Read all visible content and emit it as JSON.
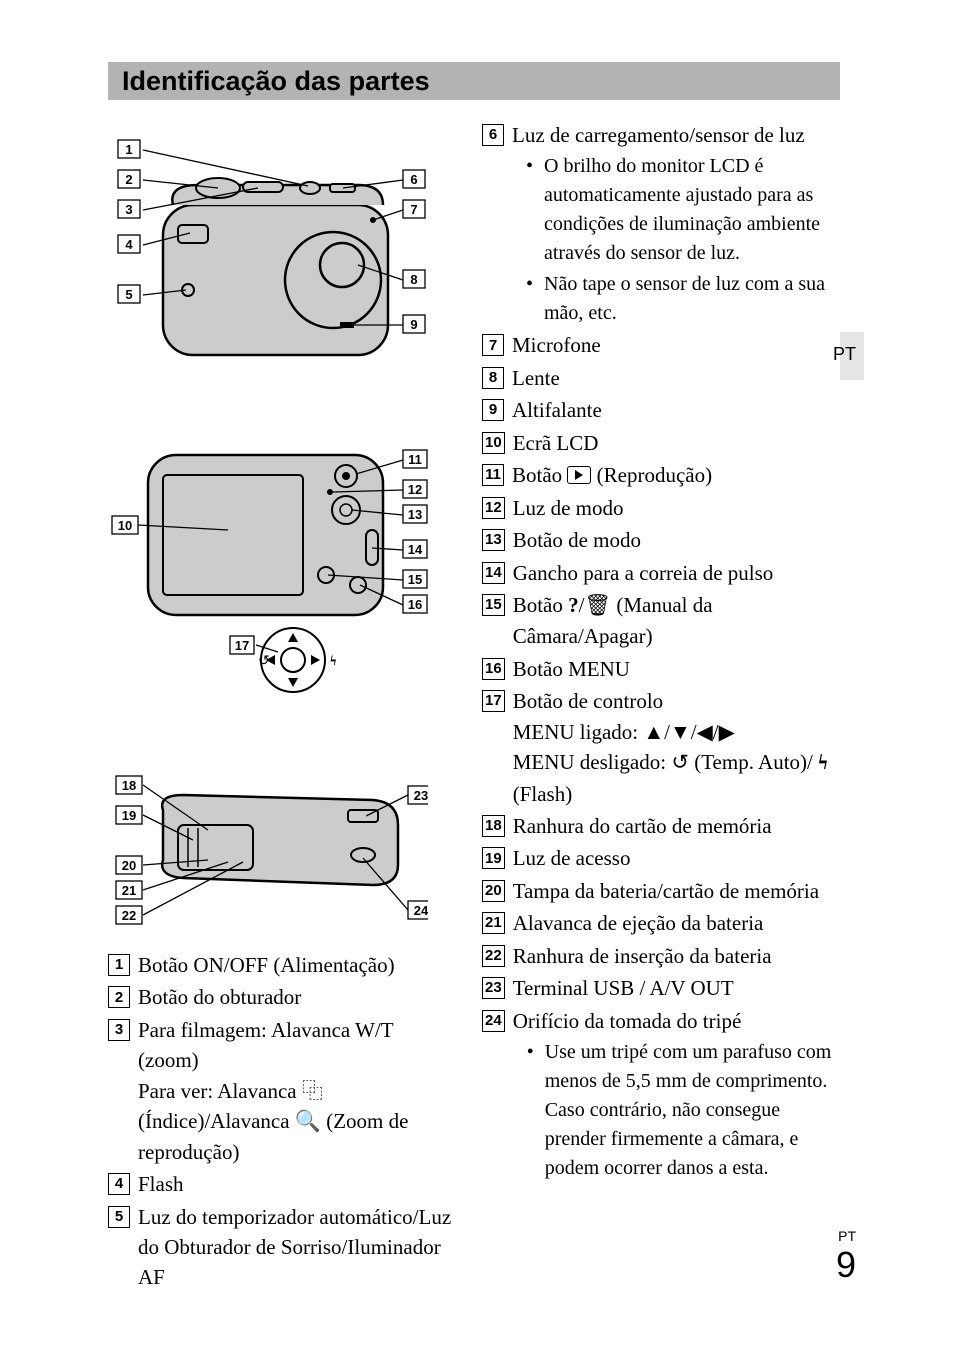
{
  "heading": "Identificação das partes",
  "side_tab": "PT",
  "footer_lang": "PT",
  "footer_page": "9",
  "diagrams": {
    "top": {
      "labels_left": [
        "1",
        "2",
        "3",
        "4",
        "5"
      ],
      "labels_right": [
        "6",
        "7",
        "8",
        "9"
      ]
    },
    "middle": {
      "labels_left": [
        "10"
      ],
      "labels_right": [
        "11",
        "12",
        "13",
        "14",
        "15",
        "16"
      ],
      "labels_bottom": [
        "17"
      ]
    },
    "bottom": {
      "labels_left": [
        "18",
        "19",
        "20",
        "21",
        "22"
      ],
      "labels_right": [
        "23",
        "24"
      ]
    }
  },
  "legend_left": [
    {
      "n": "1",
      "text": "Botão ON/OFF (Alimentação)"
    },
    {
      "n": "2",
      "text": "Botão do obturador"
    },
    {
      "n": "3",
      "text": "Para filmagem: Alavanca W/T (zoom)",
      "cont": "Para ver: Alavanca  ⿻  (Índice)/Alavanca 🔍 (Zoom de reprodução)"
    },
    {
      "n": "4",
      "text": "Flash"
    },
    {
      "n": "5",
      "text": "Luz do temporizador automático/Luz do Obturador de Sorriso/Iluminador AF"
    }
  ],
  "legend_right": [
    {
      "n": "6",
      "text": "Luz de carregamento/sensor de luz",
      "bullets": [
        "O brilho do monitor LCD é automaticamente ajustado para as condições de iluminação ambiente através do sensor de luz.",
        "Não tape o sensor de luz com a sua mão, etc."
      ]
    },
    {
      "n": "7",
      "text": "Microfone"
    },
    {
      "n": "8",
      "text": "Lente"
    },
    {
      "n": "9",
      "text": "Altifalante"
    },
    {
      "n": "10",
      "text": "Ecrã LCD"
    },
    {
      "n": "11",
      "text_html": "Botão <span class=\"play-box\" data-name=\"play-icon\" data-interactable=\"false\"></span> (Reprodução)"
    },
    {
      "n": "12",
      "text": "Luz de modo"
    },
    {
      "n": "13",
      "text": "Botão de modo"
    },
    {
      "n": "14",
      "text": "Gancho para a correia de pulso"
    },
    {
      "n": "15",
      "text_html": "Botão <b>?</b>/<span style=\"font-family:Arial\">🗑</span> (Manual da Câmara/Apagar)"
    },
    {
      "n": "16",
      "text": "Botão MENU"
    },
    {
      "n": "17",
      "text": "Botão de controlo",
      "cont_html": "MENU ligado: ▲/▼/◀/▶<br>MENU desligado: <span style=\"font-family:Arial\">↺</span> (Temp. Auto)/ <b>ϟ</b> (Flash)"
    },
    {
      "n": "18",
      "text": "Ranhura do cartão de memória"
    },
    {
      "n": "19",
      "text": "Luz de acesso"
    },
    {
      "n": "20",
      "text": "Tampa da bateria/cartão de memória"
    },
    {
      "n": "21",
      "text": "Alavanca de ejeção da bateria"
    },
    {
      "n": "22",
      "text": "Ranhura de inserção da bateria"
    },
    {
      "n": "23",
      "text": "Terminal USB / A/V OUT"
    },
    {
      "n": "24",
      "text": "Orifício da tomada do tripé",
      "bullets": [
        "Use um tripé com um parafuso com menos de 5,5 mm de comprimento. Caso contrário, não consegue prender firmemente a câmara, e podem ocorrer danos a esta."
      ]
    }
  ],
  "colors": {
    "heading_bg": "#b3b3b3",
    "camera_body": "#cccccc",
    "camera_stroke": "#000000",
    "page_bg": "#ffffff",
    "text": "#000000",
    "side_tab_bg": "#e5e5e5"
  }
}
